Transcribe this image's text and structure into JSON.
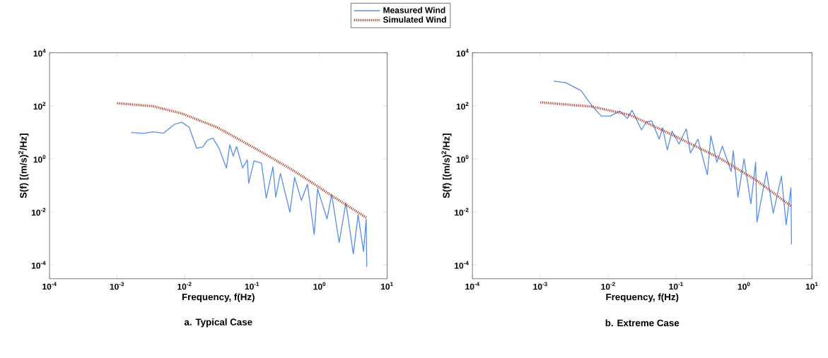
{
  "chart_data": [
    {
      "type": "line",
      "title": "a. Typical Case",
      "xlabel": "Frequency, f(Hz)",
      "ylabel": "S(f) [(m/s)$^{2}$/Hz]",
      "log": "xy",
      "grid": false,
      "legend": "top",
      "marker": "none",
      "xlim": [
        0.0001,
        10
      ],
      "ylim": [
        3e-05,
        10000
      ],
      "xticks": [
        {
          "value": 0.0001,
          "label": "10$^{-4}$"
        },
        {
          "value": 0.001,
          "label": "10$^{-3}$"
        },
        {
          "value": 0.01,
          "label": "10$^{-2}$"
        },
        {
          "value": 0.1,
          "label": "10$^{-1}$"
        },
        {
          "value": 1,
          "label": "10$^{0}$"
        },
        {
          "value": 10,
          "label": "10$^{1}$"
        }
      ],
      "yticks": [
        {
          "value": 0.0001,
          "label": "10$^{-4}$"
        },
        {
          "value": 0.01,
          "label": "10$^{-2}$"
        },
        {
          "value": 1,
          "label": "10$^{0}$"
        },
        {
          "value": 100,
          "label": "10$^{2}$"
        },
        {
          "value": 10000,
          "label": "10$^{4}$"
        }
      ],
      "series": [
        {
          "name": "Measured Wind",
          "color": "#5b8fe6",
          "line_style": "solid",
          "x": [
            0.00162,
            0.00248,
            0.00339,
            0.0049,
            0.0071,
            0.0091,
            0.0117,
            0.0151,
            0.0186,
            0.0219,
            0.0263,
            0.0324,
            0.0417,
            0.0468,
            0.0525,
            0.0589,
            0.0724,
            0.0851,
            0.0891,
            0.107,
            0.138,
            0.162,
            0.204,
            0.224,
            0.263,
            0.363,
            0.427,
            0.537,
            0.661,
            0.832,
            0.933,
            1.29,
            1.51,
            1.95,
            2.45,
            3.16,
            3.72,
            4.47,
            4.9,
            5.0
          ],
          "values": [
            9.8,
            9.1,
            10.5,
            9.3,
            20,
            24,
            15.5,
            2.5,
            2.8,
            5.1,
            6,
            2.5,
            0.45,
            3.4,
            1.26,
            2.9,
            0.46,
            0.91,
            0.12,
            0.83,
            0.68,
            0.033,
            0.5,
            0.036,
            0.28,
            0.0098,
            0.2,
            0.027,
            0.11,
            0.0014,
            0.074,
            0.0054,
            0.045,
            0.0007,
            0.022,
            0.00026,
            0.0079,
            0.00032,
            0.0054,
            8.5e-05
          ]
        },
        {
          "name": "Simulated Wind",
          "color": "#b5432a",
          "line_style": "dotted",
          "x": [
            0.001,
            0.00339,
            0.0089,
            0.0302,
            0.117,
            0.427,
            1.51,
            5.0
          ],
          "values": [
            125,
            96,
            52,
            15.5,
            2.3,
            0.34,
            0.041,
            0.0059
          ]
        }
      ]
    },
    {
      "type": "line",
      "title": "b. Extreme Case",
      "xlabel": "Frequency, f(Hz)",
      "ylabel": "S(f) [(m/s)$^{2}$/Hz]",
      "log": "xy",
      "grid": false,
      "legend": false,
      "marker": "none",
      "xlim": [
        0.0001,
        10
      ],
      "ylim": [
        3e-05,
        10000
      ],
      "xticks": [
        {
          "value": 0.0001,
          "label": "10$^{-4}$"
        },
        {
          "value": 0.001,
          "label": "10$^{-3}$"
        },
        {
          "value": 0.01,
          "label": "10$^{-2}$"
        },
        {
          "value": 0.1,
          "label": "10$^{-1}$"
        },
        {
          "value": 1,
          "label": "10$^{0}$"
        },
        {
          "value": 10,
          "label": "10$^{1}$"
        }
      ],
      "yticks": [
        {
          "value": 0.0001,
          "label": "10$^{-4}$"
        },
        {
          "value": 0.01,
          "label": "10$^{-2}$"
        },
        {
          "value": 1,
          "label": "10$^{0}$"
        },
        {
          "value": 100,
          "label": "10$^{2}$"
        },
        {
          "value": 10000,
          "label": "10$^{4}$"
        }
      ],
      "series": [
        {
          "color": "#5b8fe6",
          "line_style": "solid",
          "x": [
            0.00158,
            0.00237,
            0.00398,
            0.00575,
            0.0079,
            0.0107,
            0.0148,
            0.0191,
            0.0224,
            0.0309,
            0.0363,
            0.0437,
            0.0562,
            0.0631,
            0.0741,
            0.0871,
            0.11,
            0.141,
            0.162,
            0.209,
            0.288,
            0.324,
            0.398,
            0.479,
            0.646,
            0.692,
            0.813,
            1.0,
            1.26,
            1.48,
            1.55,
            2.14,
            2.69,
            3.55,
            4.17,
            4.9,
            5.0
          ],
          "values": [
            850,
            740,
            370,
            100,
            41,
            41,
            63,
            33,
            68,
            12.3,
            24.5,
            27,
            5.5,
            14.8,
            2.2,
            11,
            3.6,
            13.5,
            1.66,
            5.5,
            0.25,
            7.4,
            0.74,
            3,
            0.33,
            2,
            0.036,
            1.0,
            0.02,
            0.74,
            0.0041,
            0.33,
            0.0089,
            0.22,
            0.0033,
            0.081,
            0.0006
          ]
        },
        {
          "color": "#b5432a",
          "line_style": "dotted",
          "x": [
            0.001,
            0.00575,
            0.0209,
            0.0871,
            0.427,
            1.55,
            5.0
          ],
          "values": [
            135,
            93,
            45,
            8.1,
            1.1,
            0.15,
            0.016
          ]
        }
      ]
    }
  ]
}
